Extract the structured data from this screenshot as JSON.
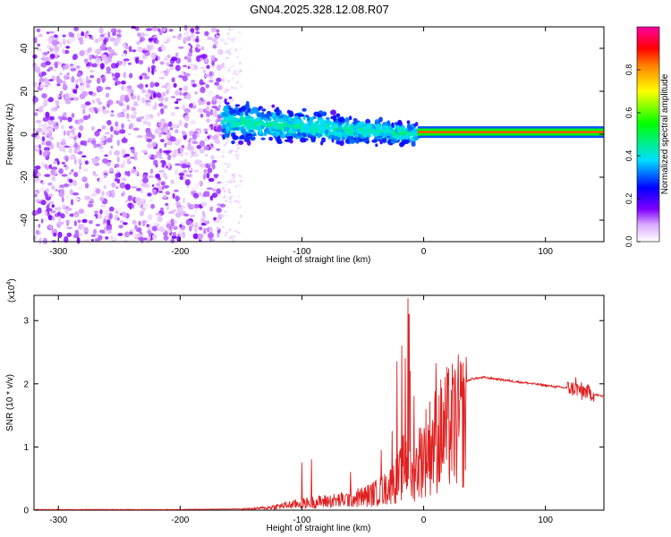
{
  "figure_title": "GN04.2025.328.12.08.R07",
  "chart_data": [
    {
      "type": "heatmap",
      "title": "GN04.2025.328.12.08.R07",
      "xlabel": "Height of straight line (km)",
      "ylabel": "Frequency (Hz)",
      "xlim": [
        -320,
        148
      ],
      "ylim": [
        -50,
        50
      ],
      "x_ticks": [
        -300,
        -200,
        -100,
        0,
        100
      ],
      "x_tick_labels": [
        "-300",
        "-200",
        "-100",
        "0",
        "100"
      ],
      "y_ticks": [
        -40,
        -20,
        0,
        20,
        40
      ],
      "y_tick_labels": [
        "-40",
        "-20",
        "0",
        "20",
        "40"
      ],
      "colorbar": {
        "label": "Normalized spectral amplitude",
        "range": [
          0,
          1
        ],
        "ticks": [
          0.0,
          0.2,
          0.4,
          0.6,
          0.8
        ],
        "tick_labels": [
          "0.0",
          "0.2",
          "0.4",
          "0.6",
          "0.8"
        ],
        "colormap": [
          "#ffffff",
          "#8000ff",
          "#0000ff",
          "#00ffff",
          "#00ff00",
          "#ffff00",
          "#ff8000",
          "#ff0000",
          "#ff00ff"
        ]
      },
      "regions": [
        {
          "name": "noise",
          "x_range": [
            -320,
            -165
          ],
          "freq_range": [
            -50,
            50
          ],
          "amplitude": 0.1
        },
        {
          "name": "transition",
          "x_range": [
            -165,
            -150
          ],
          "freq_range": [
            -50,
            50
          ],
          "amplitude": 0.04
        },
        {
          "name": "signal-band",
          "x_range": [
            -165,
            -5
          ],
          "center_freq": [
            6,
            0
          ],
          "half_width_hz": [
            8,
            4
          ],
          "amplitude": 0.3
        },
        {
          "name": "tone",
          "x_range": [
            -5,
            148
          ],
          "center_freq": [
            1,
            1
          ],
          "half_width_hz": [
            1.5,
            1.5
          ],
          "amplitude": 0.85
        }
      ]
    },
    {
      "type": "line",
      "xlabel": "Height of straight line (km)",
      "ylabel": "SNR (10 * v/v)",
      "y_scale_label": "(x10",
      "y_scale_exp": "4",
      "xlim": [
        -320,
        148
      ],
      "ylim": [
        0,
        3.4
      ],
      "x_ticks": [
        -300,
        -200,
        -100,
        0,
        100
      ],
      "x_tick_labels": [
        "-300",
        "-200",
        "-100",
        "0",
        "100"
      ],
      "y_ticks": [
        0,
        1,
        2,
        3
      ],
      "y_tick_labels": [
        "0",
        "1",
        "2",
        "3"
      ],
      "color": "#e02020",
      "series": [
        {
          "name": "SNR",
          "envelope": {
            "x": [
              -320,
              -200,
              -150,
              -130,
              -110,
              -90,
              -70,
              -50,
              -40,
              -30,
              -20,
              -15,
              -12,
              -10,
              -5,
              0,
              10,
              20,
              30,
              40,
              50,
              70,
              90,
              110,
              120,
              125,
              130,
              135,
              140,
              148
            ],
            "y": [
              0.01,
              0.01,
              0.02,
              0.05,
              0.12,
              0.18,
              0.22,
              0.3,
              0.38,
              0.5,
              0.75,
              1.1,
              0.9,
              0.7,
              1.05,
              1.3,
              1.6,
              1.85,
              2.0,
              2.08,
              2.1,
              2.05,
              2.0,
              1.95,
              1.93,
              1.92,
              1.9,
              1.87,
              1.83,
              1.8
            ]
          },
          "spikes": {
            "x": [
              -100,
              -92,
              -60,
              -35,
              -26,
              -22,
              -18,
              -15,
              -13,
              -12,
              -11,
              -8,
              10,
              125,
              130,
              135
            ],
            "y": [
              0.75,
              0.8,
              0.6,
              0.95,
              1.25,
              2.35,
              2.6,
              2.4,
              3.35,
              3.1,
              2.2,
              1.8,
              2.32,
              2.1,
              1.75,
              1.95
            ]
          }
        }
      ]
    }
  ]
}
